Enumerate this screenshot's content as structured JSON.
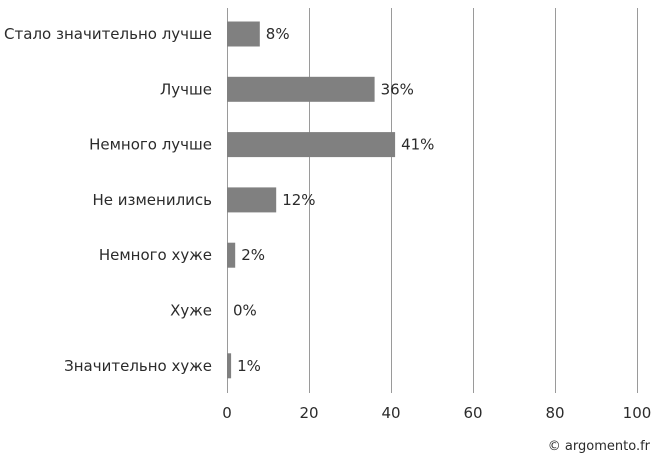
{
  "chart_data": {
    "type": "bar",
    "orientation": "horizontal",
    "categories": [
      "Стало значительно лучше",
      "Лучше",
      "Немного лучше",
      "Не изменились",
      "Немного хуже",
      "Хуже",
      "Значительно хуже"
    ],
    "values": [
      8,
      36,
      41,
      12,
      2,
      0,
      1
    ],
    "value_labels": [
      "8%",
      "36%",
      "41%",
      "12%",
      "2%",
      "0%",
      "1%"
    ],
    "xlim": [
      0,
      100
    ],
    "xticks": [
      "0",
      "20",
      "40",
      "60",
      "80",
      "100"
    ],
    "xtick_values": [
      0,
      20,
      40,
      60,
      80,
      100
    ],
    "grid": true,
    "bar_color": "#808080"
  },
  "credit": "© argomento.fr"
}
